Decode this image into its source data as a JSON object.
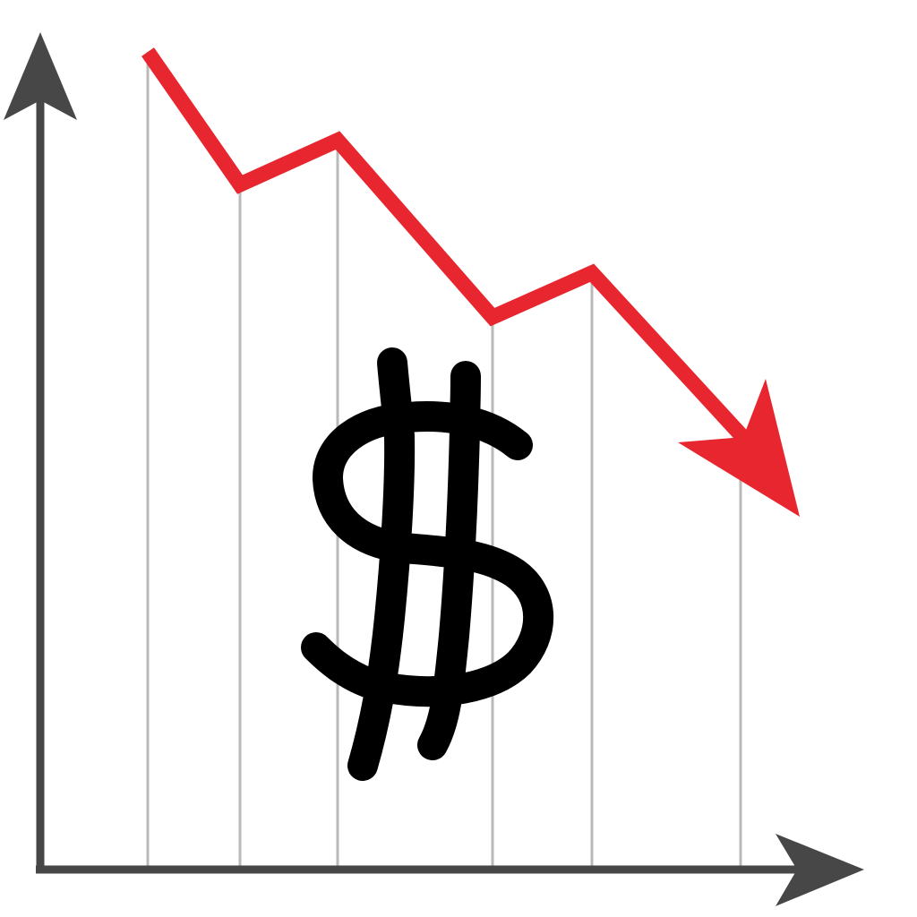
{
  "illustration": {
    "type": "line",
    "series": [
      {
        "values": [
          100,
          79,
          86,
          58,
          65,
          40
        ]
      }
    ],
    "trend_arrow": true,
    "icons": [
      "dollar-sign-icon",
      "y-axis-arrow-icon",
      "x-axis-arrow-icon",
      "trend-arrowhead-icon"
    ]
  },
  "colors": {
    "trend": "#e8262f",
    "axis": "#474747",
    "guide": "#b9b9b9",
    "dollar": "#000000",
    "background": "#ffffff"
  }
}
